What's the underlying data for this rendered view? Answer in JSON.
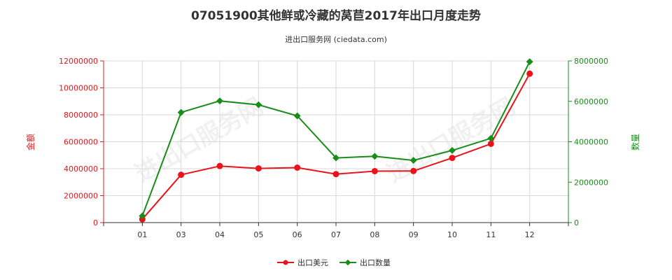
{
  "chart_data": {
    "type": "line",
    "title": "07051900其他鲜或冷藏的莴苣2017年出口月度走势",
    "subtitle": "进出口服务网 (ciedata.com)",
    "watermark": "进出口服务网",
    "categories": [
      "01",
      "03",
      "04",
      "05",
      "06",
      "07",
      "08",
      "09",
      "10",
      "11",
      "12"
    ],
    "ylabel_left": "金额",
    "ylabel_right": "数量",
    "ylim_left": [
      0,
      12000000
    ],
    "ylim_right": [
      0,
      8000000
    ],
    "yticks_left": [
      "0",
      "2000000",
      "4000000",
      "6000000",
      "8000000",
      "10000000",
      "12000000"
    ],
    "yticks_right": [
      "0",
      "2000000",
      "4000000",
      "6000000",
      "8000000"
    ],
    "grid": true,
    "legend_position": "bottom-center",
    "series": [
      {
        "name": "出口美元",
        "axis": "left",
        "color": "#e8141a",
        "values": [
          250000,
          3550000,
          4200000,
          4020000,
          4080000,
          3600000,
          3820000,
          3830000,
          4800000,
          5850000,
          11050000
        ]
      },
      {
        "name": "出口数量",
        "axis": "right",
        "color": "#198c19",
        "values": [
          330000,
          5450000,
          6020000,
          5830000,
          5280000,
          3200000,
          3280000,
          3080000,
          3570000,
          4170000,
          7960000
        ]
      }
    ]
  }
}
